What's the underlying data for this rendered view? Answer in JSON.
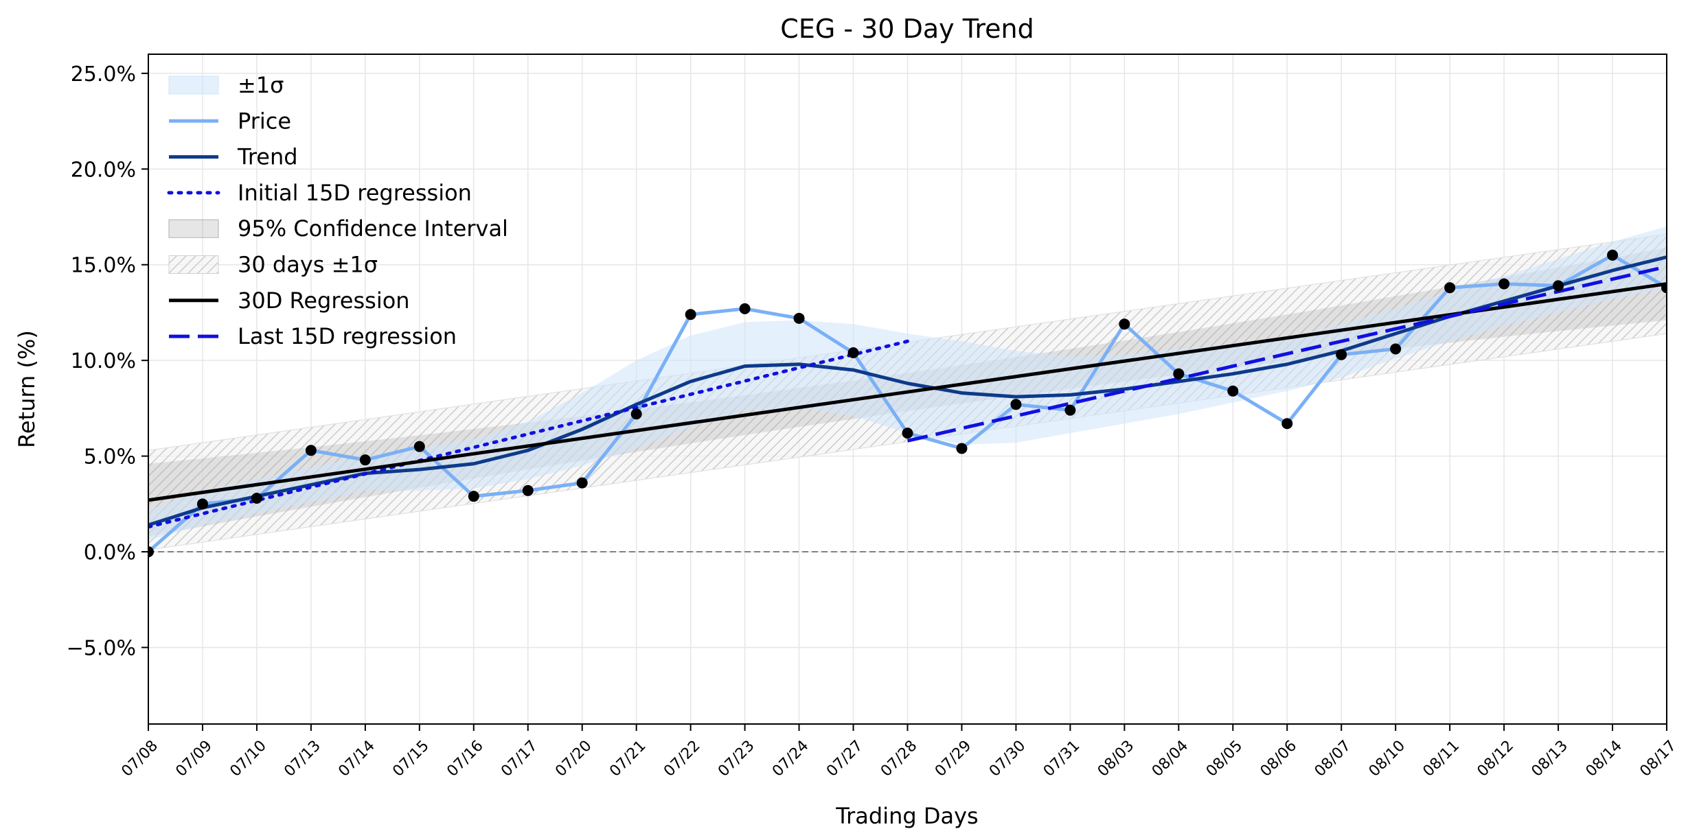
{
  "chart_data": {
    "type": "line",
    "title": "CEG - 30 Day Trend",
    "xlabel": "Trading Days",
    "ylabel": "Return (%)",
    "ylim": [
      -9.0,
      26.0
    ],
    "y_ticks": [
      -5.0,
      0.0,
      5.0,
      10.0,
      15.0,
      20.0,
      25.0
    ],
    "y_tick_labels": [
      "−5.0%",
      "0.0%",
      "5.0%",
      "10.0%",
      "15.0%",
      "20.0%",
      "25.0%"
    ],
    "grid": true,
    "legend_position": "top-left",
    "categories": [
      "07/08",
      "07/09",
      "07/10",
      "07/13",
      "07/14",
      "07/15",
      "07/16",
      "07/17",
      "07/20",
      "07/21",
      "07/22",
      "07/23",
      "07/24",
      "07/27",
      "07/28",
      "07/29",
      "07/30",
      "07/31",
      "08/03",
      "08/04",
      "08/05",
      "08/06",
      "08/07",
      "08/10",
      "08/11",
      "08/12",
      "08/13",
      "08/14",
      "08/17"
    ],
    "legend": [
      "±1σ",
      "Price",
      "Trend",
      "Initial 15D regression",
      "95% Confidence Interval",
      "30 days ±1σ",
      "30D Regression",
      "Last 15D regression"
    ],
    "series": [
      {
        "name": "Price",
        "color": "#7ab0f5",
        "values": [
          0.0,
          2.5,
          2.8,
          5.3,
          4.8,
          5.5,
          2.9,
          3.2,
          3.6,
          7.2,
          12.4,
          12.7,
          12.2,
          10.4,
          6.2,
          5.4,
          7.7,
          7.4,
          11.9,
          9.3,
          8.4,
          6.7,
          10.3,
          10.6,
          13.8,
          14.0,
          13.9,
          15.5,
          13.8
        ]
      },
      {
        "name": "Trend",
        "color": "#0d3a8a",
        "values": [
          1.4,
          2.3,
          2.9,
          3.5,
          4.1,
          4.3,
          4.6,
          5.3,
          6.4,
          7.7,
          8.9,
          9.7,
          9.8,
          9.5,
          8.8,
          8.3,
          8.1,
          8.2,
          8.5,
          8.9,
          9.3,
          9.8,
          10.5,
          11.4,
          12.3,
          13.1,
          13.9,
          14.7,
          15.4
        ]
      },
      {
        "name": "Initial 15D regression",
        "color": "#1010e0",
        "style": "dotted",
        "x_range": [
          0,
          14
        ],
        "start": 1.3,
        "end": 11.0
      },
      {
        "name": "Last 15D regression",
        "color": "#1010e0",
        "style": "dashed",
        "x_range": [
          14,
          28
        ],
        "start": 5.8,
        "end": 14.9
      },
      {
        "name": "30D Regression",
        "color": "#000000",
        "x_range": [
          0,
          28
        ],
        "start": 2.7,
        "end": 14.0
      }
    ],
    "bands": [
      {
        "name": "95% Confidence Interval",
        "halfwidth_ends": 1.9,
        "halfwidth_mid": 1.0
      },
      {
        "name": "30 days ±1σ",
        "halfwidth": 2.6
      },
      {
        "name": "±1σ",
        "upper": [
          2.2,
          3.2,
          3.8,
          4.4,
          5.0,
          5.4,
          5.9,
          6.8,
          8.3,
          10.0,
          11.3,
          12.0,
          12.1,
          11.9,
          11.4,
          11.0,
          10.5,
          10.2,
          10.3,
          10.6,
          10.8,
          11.2,
          11.9,
          12.7,
          13.6,
          14.4,
          15.3,
          16.2,
          17.0
        ],
        "lower": [
          0.6,
          1.4,
          2.0,
          2.6,
          3.2,
          3.2,
          3.3,
          3.8,
          4.5,
          5.4,
          6.5,
          7.4,
          7.5,
          7.1,
          6.2,
          5.6,
          5.7,
          6.2,
          6.7,
          7.2,
          7.8,
          8.4,
          9.1,
          10.1,
          11.0,
          11.8,
          12.5,
          13.2,
          13.8
        ]
      }
    ],
    "baseline": 0.0
  }
}
